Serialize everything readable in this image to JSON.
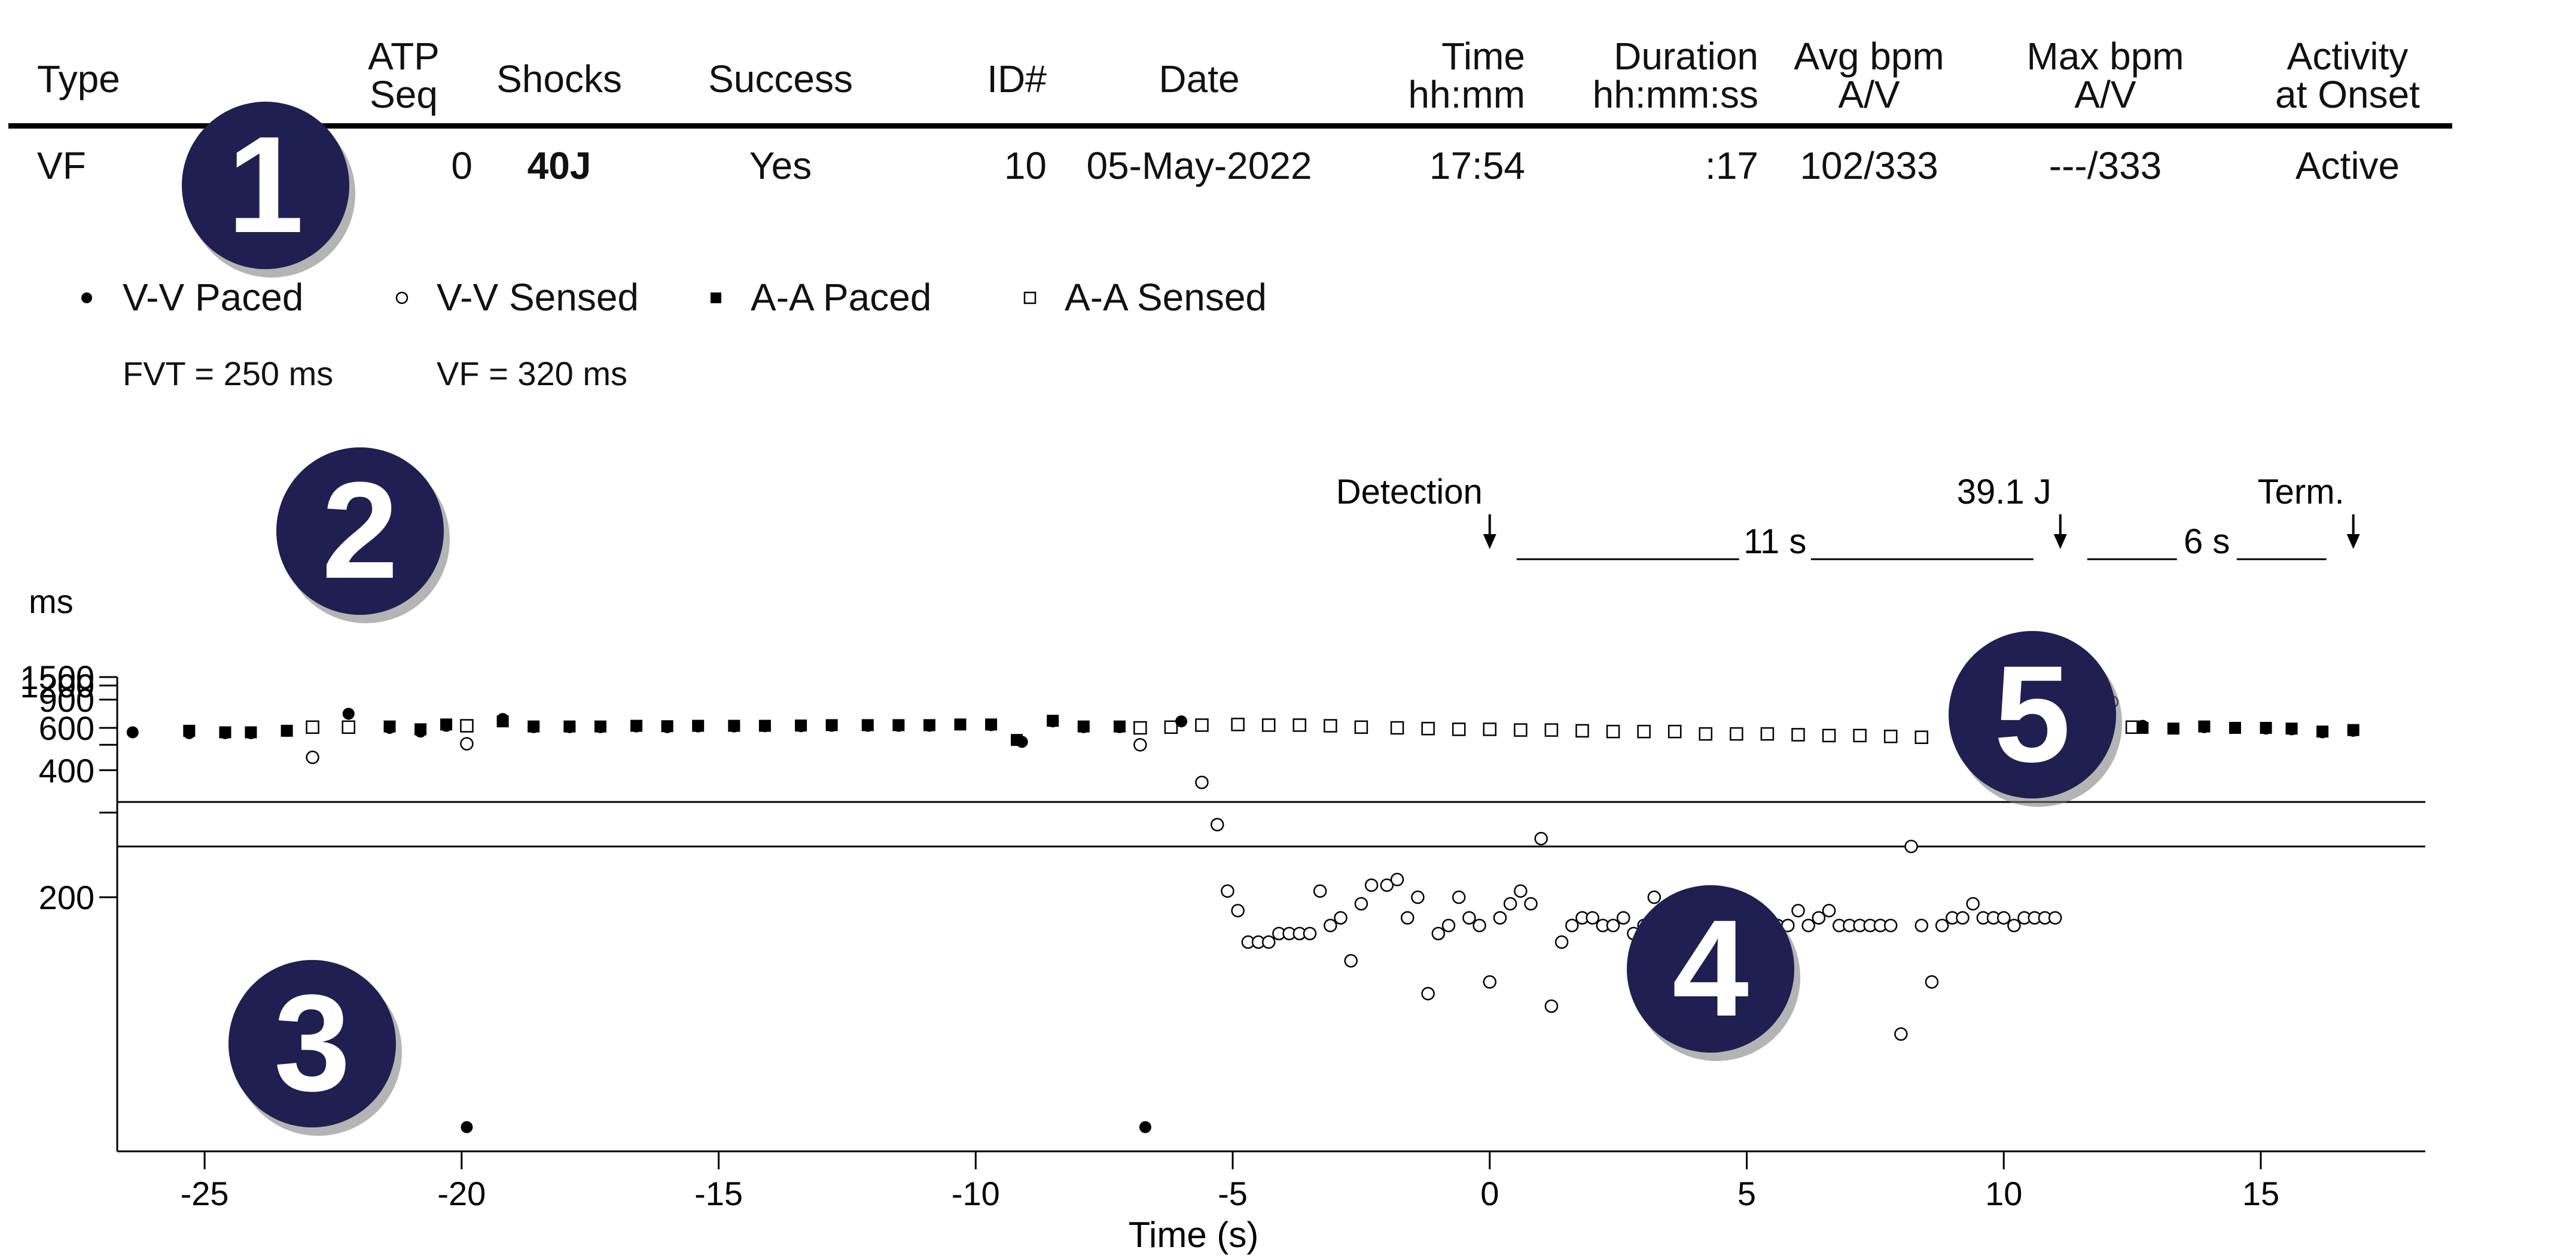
{
  "table": {
    "headers": [
      {
        "key": "type",
        "lines": [
          "Type"
        ]
      },
      {
        "key": "atp",
        "lines": [
          "ATP",
          "Seq"
        ]
      },
      {
        "key": "shocks",
        "lines": [
          "Shocks"
        ]
      },
      {
        "key": "success",
        "lines": [
          "Success"
        ]
      },
      {
        "key": "id",
        "lines": [
          "ID#"
        ]
      },
      {
        "key": "date",
        "lines": [
          "Date"
        ]
      },
      {
        "key": "time",
        "lines": [
          "Time",
          "hh:mm"
        ]
      },
      {
        "key": "duration",
        "lines": [
          "Duration",
          "hh:mm:ss"
        ]
      },
      {
        "key": "avg",
        "lines": [
          "Avg bpm",
          "A/V"
        ]
      },
      {
        "key": "max",
        "lines": [
          "Max bpm",
          "A/V"
        ]
      },
      {
        "key": "activity",
        "lines": [
          "Activity",
          "at Onset"
        ]
      }
    ],
    "row": {
      "type": "VF",
      "atp": "0",
      "shocks": "40J",
      "success": "Yes",
      "id": "10",
      "date": "05-May-2022",
      "time": "17:54",
      "duration": ":17",
      "avg": "102/333",
      "max": "---/333",
      "activity": "Active"
    }
  },
  "legend": {
    "items": [
      "V-V Paced",
      "V-V Sensed",
      "A-A Paced",
      "A-A Sensed"
    ],
    "thresholds": [
      "FVT = 250 ms",
      "VF = 320 ms"
    ]
  },
  "callouts": [
    "1",
    "2",
    "3",
    "4",
    "5"
  ],
  "colors": {
    "callout_fill": "#1f1f52",
    "ink": "#000000"
  },
  "chart_data": {
    "type": "scatter",
    "xlabel": "Time (s)",
    "ylabel": "ms",
    "xlim": [
      -26.7,
      18.2
    ],
    "ylim": [
      100,
      1500
    ],
    "y_scale": "reciprocal",
    "y_ticks_labeled": [
      1500,
      1200,
      900,
      600,
      400,
      200
    ],
    "y_ticks_minor": [
      500,
      300
    ],
    "x_ticks": [
      -25,
      -20,
      -15,
      -10,
      -5,
      0,
      5,
      10,
      15
    ],
    "threshold_lines_ms": [
      320,
      250
    ],
    "annotations": {
      "detection": {
        "label": "Detection",
        "x": 0
      },
      "shock": {
        "label": "39.1 J",
        "x": 11.1
      },
      "termination": {
        "label": "Term.",
        "x": 16.8
      },
      "segment1": {
        "label": "11 s",
        "from": 0,
        "to": 11.1
      },
      "segment2": {
        "label": "6 s",
        "from": 11.1,
        "to": 16.8
      }
    },
    "series": [
      {
        "name": "V-V Paced",
        "marker": "filled-circle",
        "points": [
          [
            -26.4,
            570
          ],
          [
            -25.3,
            565
          ],
          [
            -24.6,
            565
          ],
          [
            -24.1,
            565
          ],
          [
            -23.4,
            580
          ],
          [
            -22.2,
            720
          ],
          [
            -21.4,
            600
          ],
          [
            -20.8,
            575
          ],
          [
            -20.3,
            615
          ],
          [
            -19.9,
            105
          ],
          [
            -19.2,
            670
          ],
          [
            -18.6,
            605
          ],
          [
            -17.9,
            605
          ],
          [
            -17.3,
            605
          ],
          [
            -16.6,
            610
          ],
          [
            -16.0,
            605
          ],
          [
            -15.4,
            610
          ],
          [
            -14.7,
            610
          ],
          [
            -14.1,
            612
          ],
          [
            -13.4,
            612
          ],
          [
            -12.8,
            615
          ],
          [
            -12.1,
            615
          ],
          [
            -11.5,
            615
          ],
          [
            -10.9,
            615
          ],
          [
            -10.3,
            625
          ],
          [
            -9.7,
            620
          ],
          [
            -9.1,
            515
          ],
          [
            -8.5,
            650
          ],
          [
            -7.9,
            605
          ],
          [
            -7.2,
            605
          ],
          [
            -6.7,
            105
          ],
          [
            -6.0,
            650
          ],
          [
            12.7,
            615
          ],
          [
            13.3,
            595
          ],
          [
            13.9,
            605
          ],
          [
            14.5,
            600
          ],
          [
            15.1,
            595
          ],
          [
            15.6,
            590
          ],
          [
            16.2,
            570
          ],
          [
            16.8,
            580
          ]
        ]
      },
      {
        "name": "V-V Sensed",
        "marker": "open-circle",
        "points": [
          [
            -22.9,
            445
          ],
          [
            -19.9,
            505
          ],
          [
            -6.8,
            500
          ],
          [
            -5.6,
            365
          ],
          [
            -5.3,
            280
          ],
          [
            -5.1,
            205
          ],
          [
            -4.9,
            190
          ],
          [
            -4.7,
            170
          ],
          [
            -4.5,
            170
          ],
          [
            -4.3,
            170
          ],
          [
            -4.1,
            175
          ],
          [
            -3.9,
            175
          ],
          [
            -3.7,
            175
          ],
          [
            -3.5,
            175
          ],
          [
            -3.3,
            205
          ],
          [
            -3.1,
            180
          ],
          [
            -2.9,
            185
          ],
          [
            -2.7,
            160
          ],
          [
            -2.5,
            195
          ],
          [
            -2.3,
            210
          ],
          [
            -2.0,
            210
          ],
          [
            -1.8,
            215
          ],
          [
            -1.6,
            185
          ],
          [
            -1.4,
            200
          ],
          [
            -1.2,
            145
          ],
          [
            -1.0,
            175
          ],
          [
            -0.8,
            180
          ],
          [
            -0.6,
            200
          ],
          [
            -0.4,
            185
          ],
          [
            -0.2,
            180
          ],
          [
            0.0,
            150
          ],
          [
            0.2,
            185
          ],
          [
            0.4,
            195
          ],
          [
            0.6,
            205
          ],
          [
            0.8,
            195
          ],
          [
            1.0,
            260
          ],
          [
            1.2,
            140
          ],
          [
            1.4,
            170
          ],
          [
            1.6,
            180
          ],
          [
            1.8,
            185
          ],
          [
            2.0,
            185
          ],
          [
            2.2,
            180
          ],
          [
            2.4,
            180
          ],
          [
            2.6,
            185
          ],
          [
            2.8,
            175
          ],
          [
            3.0,
            180
          ],
          [
            3.2,
            200
          ],
          [
            3.4,
            185
          ],
          [
            3.6,
            190
          ],
          [
            3.8,
            185
          ],
          [
            4.0,
            145
          ],
          [
            4.2,
            135
          ],
          [
            4.6,
            175
          ],
          [
            5.4,
            185
          ],
          [
            5.6,
            180
          ],
          [
            5.8,
            180
          ],
          [
            6.0,
            190
          ],
          [
            6.2,
            180
          ],
          [
            6.4,
            185
          ],
          [
            6.6,
            190
          ],
          [
            6.8,
            180
          ],
          [
            7.0,
            180
          ],
          [
            7.2,
            180
          ],
          [
            7.4,
            180
          ],
          [
            7.6,
            180
          ],
          [
            7.8,
            180
          ],
          [
            8.0,
            130
          ],
          [
            8.2,
            250
          ],
          [
            8.4,
            180
          ],
          [
            8.6,
            150
          ],
          [
            8.8,
            180
          ],
          [
            9.0,
            185
          ],
          [
            9.2,
            185
          ],
          [
            9.4,
            195
          ],
          [
            9.6,
            185
          ],
          [
            9.8,
            185
          ],
          [
            10.0,
            185
          ],
          [
            10.2,
            180
          ],
          [
            10.4,
            185
          ],
          [
            10.6,
            185
          ],
          [
            10.8,
            185
          ],
          [
            11.0,
            185
          ],
          [
            12.1,
            865
          ]
        ]
      },
      {
        "name": "A-A Paced",
        "marker": "filled-square",
        "points": [
          [
            -25.3,
            580
          ],
          [
            -24.6,
            570
          ],
          [
            -24.1,
            570
          ],
          [
            -23.4,
            580
          ],
          [
            -21.4,
            610
          ],
          [
            -20.8,
            590
          ],
          [
            -20.3,
            625
          ],
          [
            -19.2,
            650
          ],
          [
            -18.6,
            610
          ],
          [
            -17.9,
            610
          ],
          [
            -17.3,
            610
          ],
          [
            -16.6,
            615
          ],
          [
            -16.0,
            612
          ],
          [
            -15.4,
            615
          ],
          [
            -14.7,
            615
          ],
          [
            -14.1,
            615
          ],
          [
            -13.4,
            617
          ],
          [
            -12.8,
            620
          ],
          [
            -12.1,
            620
          ],
          [
            -11.5,
            620
          ],
          [
            -10.9,
            620
          ],
          [
            -10.3,
            625
          ],
          [
            -9.7,
            625
          ],
          [
            -9.2,
            525
          ],
          [
            -8.5,
            655
          ],
          [
            -7.9,
            610
          ],
          [
            -7.2,
            610
          ],
          [
            12.7,
            600
          ],
          [
            13.3,
            595
          ],
          [
            13.9,
            610
          ],
          [
            14.5,
            600
          ],
          [
            15.1,
            600
          ],
          [
            15.6,
            595
          ],
          [
            16.2,
            575
          ],
          [
            16.8,
            585
          ]
        ]
      },
      {
        "name": "A-A Sensed",
        "marker": "open-square",
        "points": [
          [
            -22.9,
            605
          ],
          [
            -22.2,
            605
          ],
          [
            -19.9,
            615
          ],
          [
            -6.8,
            600
          ],
          [
            -6.2,
            605
          ],
          [
            -5.6,
            620
          ],
          [
            -4.9,
            625
          ],
          [
            -4.3,
            620
          ],
          [
            -3.7,
            620
          ],
          [
            -3.1,
            615
          ],
          [
            -2.5,
            605
          ],
          [
            -1.8,
            600
          ],
          [
            -1.2,
            595
          ],
          [
            -0.6,
            590
          ],
          [
            0.0,
            590
          ],
          [
            0.6,
            585
          ],
          [
            1.2,
            585
          ],
          [
            1.8,
            580
          ],
          [
            2.4,
            575
          ],
          [
            3.0,
            575
          ],
          [
            3.6,
            575
          ],
          [
            4.2,
            560
          ],
          [
            4.8,
            560
          ],
          [
            5.4,
            560
          ],
          [
            6.0,
            555
          ],
          [
            6.6,
            550
          ],
          [
            7.2,
            550
          ],
          [
            7.8,
            545
          ],
          [
            8.4,
            540
          ],
          [
            9.3,
            665
          ],
          [
            9.9,
            635
          ],
          [
            10.5,
            600
          ],
          [
            12.5,
            605
          ]
        ]
      }
    ]
  }
}
